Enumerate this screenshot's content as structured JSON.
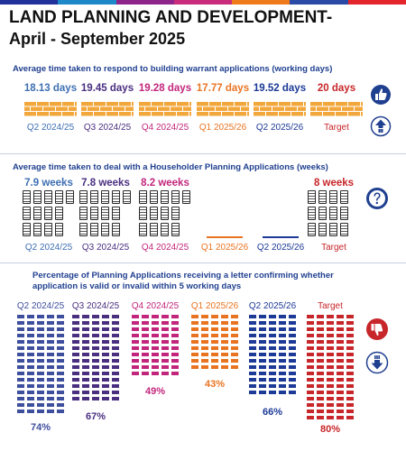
{
  "header": {
    "title": "LAND PLANNING AND DEVELOPMENT-",
    "subtitle": "April - September 2025",
    "bar_colors": [
      "#20329a",
      "#1e88c9",
      "#8e2489",
      "#c82c7a",
      "#ef7a1a",
      "#2a4aa5",
      "#e3262b"
    ]
  },
  "colors": {
    "navy": "#1f3f8f",
    "blue": "#3e4f9e",
    "purple": "#4a2f80",
    "magenta": "#c2267c",
    "orange": "#e87422",
    "darkblue": "#1c3a96",
    "red": "#c7262a",
    "brick": "#f2a73c"
  },
  "building_warrant": {
    "title": "Average time taken to respond to building warrant applications (working days)",
    "items": [
      {
        "value": "18.13 days",
        "label": "Q2 2024/25",
        "color": "#3e6fb2"
      },
      {
        "value": "19.45 days",
        "label": "Q3 2024/25",
        "color": "#4a2f80"
      },
      {
        "value": "19.28 days",
        "label": "Q4 2024/25",
        "color": "#c2267c"
      },
      {
        "value": "17.77 days",
        "label": "Q1 2025/26",
        "color": "#e87422"
      },
      {
        "value": "19.52 days",
        "label": "Q2 2025/26",
        "color": "#1c3a96"
      },
      {
        "value": "20 days",
        "label": "Target",
        "color": "#c7262a"
      }
    ],
    "icons": [
      "thumbs-up-icon",
      "up-arrow-icon"
    ]
  },
  "householder": {
    "title": "Average time taken to deal with a Householder Planning Applications (weeks)",
    "items": [
      {
        "value": "7.9 weeks",
        "label": "Q2 2024/25",
        "color": "#3e6fb2"
      },
      {
        "value": "7.8 weeks",
        "label": "Q3 2024/25",
        "color": "#4a2f80"
      },
      {
        "value": "8.2 weeks",
        "label": "Q4 2024/25",
        "color": "#c2267c"
      },
      {
        "value": "",
        "label": "Q1 2025/26",
        "color": "#e87422"
      },
      {
        "value": "",
        "label": "Q2 2025/26",
        "color": "#1c3a96"
      },
      {
        "value": "8 weeks",
        "label": "Target",
        "color": "#c7262a"
      }
    ],
    "icons": [
      "question-mark-icon"
    ]
  },
  "valid_letter": {
    "title_line1": "Percentage of Planning Applications receiving a letter confirming whether",
    "title_line2": "application is valid or invalid within 5 working days",
    "items": [
      {
        "label": "Q2 2024/25",
        "value": "74%",
        "color": "#3e4f9e"
      },
      {
        "label": "Q3 2024/25",
        "value": "67%",
        "color": "#4a2f80"
      },
      {
        "label": "Q4 2024/25",
        "value": "49%",
        "color": "#c2267c"
      },
      {
        "label": "Q1 2025/26",
        "value": "43%",
        "color": "#e87422"
      },
      {
        "label": "Q2 2025/26",
        "value": "66%",
        "color": "#1c3a96"
      },
      {
        "label": "Target",
        "value": "80%",
        "color": "#c7262a"
      }
    ],
    "icons": [
      "thumbs-down-icon",
      "down-arrow-icon"
    ]
  }
}
